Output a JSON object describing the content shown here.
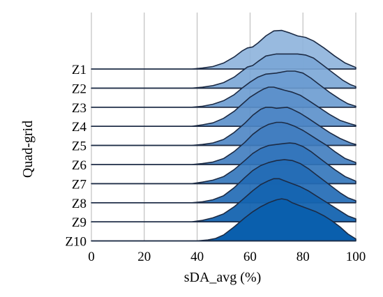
{
  "chart_data": {
    "type": "ridgeline",
    "title": "",
    "xlabel": "sDA_avg (%)",
    "ylabel": "Quad-grid",
    "xlim": [
      0,
      100
    ],
    "xticks": [
      "0",
      "20",
      "40",
      "60",
      "80",
      "100"
    ],
    "grid": "vertical",
    "outline_color": "#1c2b45",
    "series": [
      {
        "name": "Z1",
        "fill": "#8db3dc",
        "opacity": 0.9,
        "points": [
          [
            0,
            0
          ],
          [
            38,
            0
          ],
          [
            42,
            0.02
          ],
          [
            46,
            0.05
          ],
          [
            50,
            0.12
          ],
          [
            54,
            0.24
          ],
          [
            57,
            0.36
          ],
          [
            59,
            0.42
          ],
          [
            61,
            0.44
          ],
          [
            63,
            0.52
          ],
          [
            66,
            0.66
          ],
          [
            69,
            0.76
          ],
          [
            72,
            0.77
          ],
          [
            75,
            0.72
          ],
          [
            78,
            0.66
          ],
          [
            81,
            0.63
          ],
          [
            84,
            0.56
          ],
          [
            88,
            0.42
          ],
          [
            92,
            0.26
          ],
          [
            96,
            0.12
          ],
          [
            100,
            0.03
          ]
        ]
      },
      {
        "name": "Z2",
        "fill": "#7aa6d6",
        "opacity": 0.9,
        "points": [
          [
            0,
            0
          ],
          [
            38,
            0
          ],
          [
            42,
            0.02
          ],
          [
            46,
            0.05
          ],
          [
            50,
            0.11
          ],
          [
            54,
            0.22
          ],
          [
            57,
            0.34
          ],
          [
            59,
            0.42
          ],
          [
            61,
            0.45
          ],
          [
            63,
            0.53
          ],
          [
            66,
            0.64
          ],
          [
            70,
            0.68
          ],
          [
            74,
            0.68
          ],
          [
            78,
            0.68
          ],
          [
            81,
            0.66
          ],
          [
            84,
            0.6
          ],
          [
            87,
            0.48
          ],
          [
            91,
            0.32
          ],
          [
            95,
            0.16
          ],
          [
            98,
            0.07
          ],
          [
            100,
            0.03
          ]
        ]
      },
      {
        "name": "Z3",
        "fill": "#6a9bd0",
        "opacity": 0.9,
        "points": [
          [
            0,
            0
          ],
          [
            38,
            0
          ],
          [
            42,
            0.02
          ],
          [
            46,
            0.06
          ],
          [
            50,
            0.13
          ],
          [
            54,
            0.25
          ],
          [
            57,
            0.38
          ],
          [
            60,
            0.5
          ],
          [
            63,
            0.6
          ],
          [
            66,
            0.66
          ],
          [
            70,
            0.68
          ],
          [
            74,
            0.72
          ],
          [
            77,
            0.72
          ],
          [
            80,
            0.68
          ],
          [
            83,
            0.58
          ],
          [
            86,
            0.46
          ],
          [
            90,
            0.3
          ],
          [
            94,
            0.16
          ],
          [
            97,
            0.07
          ],
          [
            100,
            0.02
          ]
        ]
      },
      {
        "name": "Z4",
        "fill": "#5a8fca",
        "opacity": 0.9,
        "points": [
          [
            0,
            0
          ],
          [
            38,
            0
          ],
          [
            42,
            0.03
          ],
          [
            46,
            0.07
          ],
          [
            50,
            0.16
          ],
          [
            54,
            0.3
          ],
          [
            57,
            0.44
          ],
          [
            60,
            0.58
          ],
          [
            63,
            0.68
          ],
          [
            65,
            0.74
          ],
          [
            67,
            0.78
          ],
          [
            69,
            0.78
          ],
          [
            71,
            0.75
          ],
          [
            73,
            0.72
          ],
          [
            76,
            0.68
          ],
          [
            79,
            0.62
          ],
          [
            82,
            0.52
          ],
          [
            86,
            0.38
          ],
          [
            90,
            0.24
          ],
          [
            94,
            0.12
          ],
          [
            98,
            0.05
          ],
          [
            100,
            0.02
          ]
        ]
      },
      {
        "name": "Z5",
        "fill": "#4d85c4",
        "opacity": 0.9,
        "points": [
          [
            0,
            0
          ],
          [
            38,
            0
          ],
          [
            42,
            0.02
          ],
          [
            46,
            0.05
          ],
          [
            50,
            0.12
          ],
          [
            54,
            0.26
          ],
          [
            58,
            0.44
          ],
          [
            61,
            0.6
          ],
          [
            64,
            0.72
          ],
          [
            66,
            0.76
          ],
          [
            68,
            0.76
          ],
          [
            70,
            0.74
          ],
          [
            72,
            0.75
          ],
          [
            74,
            0.76
          ],
          [
            76,
            0.72
          ],
          [
            79,
            0.64
          ],
          [
            82,
            0.54
          ],
          [
            86,
            0.4
          ],
          [
            90,
            0.26
          ],
          [
            94,
            0.14
          ],
          [
            98,
            0.05
          ],
          [
            100,
            0.02
          ]
        ]
      },
      {
        "name": "Z6",
        "fill": "#3f7cbf",
        "opacity": 0.9,
        "points": [
          [
            0,
            0
          ],
          [
            38,
            0
          ],
          [
            42,
            0.02
          ],
          [
            46,
            0.05
          ],
          [
            50,
            0.12
          ],
          [
            54,
            0.26
          ],
          [
            58,
            0.44
          ],
          [
            61,
            0.6
          ],
          [
            64,
            0.72
          ],
          [
            67,
            0.8
          ],
          [
            70,
            0.84
          ],
          [
            72,
            0.84
          ],
          [
            74,
            0.82
          ],
          [
            77,
            0.76
          ],
          [
            80,
            0.68
          ],
          [
            83,
            0.58
          ],
          [
            86,
            0.48
          ],
          [
            89,
            0.38
          ],
          [
            92,
            0.26
          ],
          [
            96,
            0.12
          ],
          [
            100,
            0.04
          ]
        ]
      },
      {
        "name": "Z7",
        "fill": "#3174ba",
        "opacity": 0.9,
        "points": [
          [
            0,
            0
          ],
          [
            38,
            0
          ],
          [
            42,
            0.03
          ],
          [
            46,
            0.07
          ],
          [
            50,
            0.14
          ],
          [
            54,
            0.28
          ],
          [
            58,
            0.46
          ],
          [
            61,
            0.6
          ],
          [
            64,
            0.7
          ],
          [
            67,
            0.76
          ],
          [
            70,
            0.78
          ],
          [
            73,
            0.8
          ],
          [
            75,
            0.81
          ],
          [
            77,
            0.8
          ],
          [
            80,
            0.74
          ],
          [
            83,
            0.64
          ],
          [
            86,
            0.52
          ],
          [
            89,
            0.4
          ],
          [
            92,
            0.28
          ],
          [
            96,
            0.14
          ],
          [
            100,
            0.05
          ]
        ]
      },
      {
        "name": "Z8",
        "fill": "#236bb5",
        "opacity": 0.92,
        "points": [
          [
            0,
            0
          ],
          [
            38,
            0
          ],
          [
            42,
            0.02
          ],
          [
            46,
            0.06
          ],
          [
            50,
            0.14
          ],
          [
            54,
            0.3
          ],
          [
            58,
            0.5
          ],
          [
            61,
            0.64
          ],
          [
            64,
            0.74
          ],
          [
            67,
            0.8
          ],
          [
            70,
            0.84
          ],
          [
            73,
            0.86
          ],
          [
            76,
            0.84
          ],
          [
            79,
            0.78
          ],
          [
            82,
            0.68
          ],
          [
            85,
            0.56
          ],
          [
            88,
            0.44
          ],
          [
            91,
            0.32
          ],
          [
            94,
            0.2
          ],
          [
            97,
            0.1
          ],
          [
            100,
            0.04
          ]
        ]
      },
      {
        "name": "Z9",
        "fill": "#1564b0",
        "opacity": 0.95,
        "points": [
          [
            0,
            0
          ],
          [
            38,
            0
          ],
          [
            42,
            0.03
          ],
          [
            46,
            0.08
          ],
          [
            50,
            0.16
          ],
          [
            54,
            0.3
          ],
          [
            58,
            0.48
          ],
          [
            61,
            0.62
          ],
          [
            64,
            0.74
          ],
          [
            67,
            0.82
          ],
          [
            69,
            0.86
          ],
          [
            71,
            0.86
          ],
          [
            73,
            0.82
          ],
          [
            76,
            0.76
          ],
          [
            79,
            0.7
          ],
          [
            82,
            0.62
          ],
          [
            85,
            0.52
          ],
          [
            88,
            0.42
          ],
          [
            91,
            0.32
          ],
          [
            94,
            0.22
          ],
          [
            97,
            0.12
          ],
          [
            100,
            0.06
          ]
        ]
      },
      {
        "name": "Z10",
        "fill": "#0a5fad",
        "opacity": 1.0,
        "points": [
          [
            0,
            0
          ],
          [
            40,
            0
          ],
          [
            44,
            0.02
          ],
          [
            47,
            0.05
          ],
          [
            50,
            0.12
          ],
          [
            54,
            0.28
          ],
          [
            58,
            0.46
          ],
          [
            61,
            0.58
          ],
          [
            64,
            0.68
          ],
          [
            67,
            0.76
          ],
          [
            70,
            0.82
          ],
          [
            72,
            0.84
          ],
          [
            74,
            0.82
          ],
          [
            76,
            0.76
          ],
          [
            79,
            0.7
          ],
          [
            82,
            0.64
          ],
          [
            85,
            0.58
          ],
          [
            88,
            0.5
          ],
          [
            91,
            0.4
          ],
          [
            94,
            0.28
          ],
          [
            97,
            0.14
          ],
          [
            100,
            0.04
          ]
        ]
      }
    ]
  }
}
